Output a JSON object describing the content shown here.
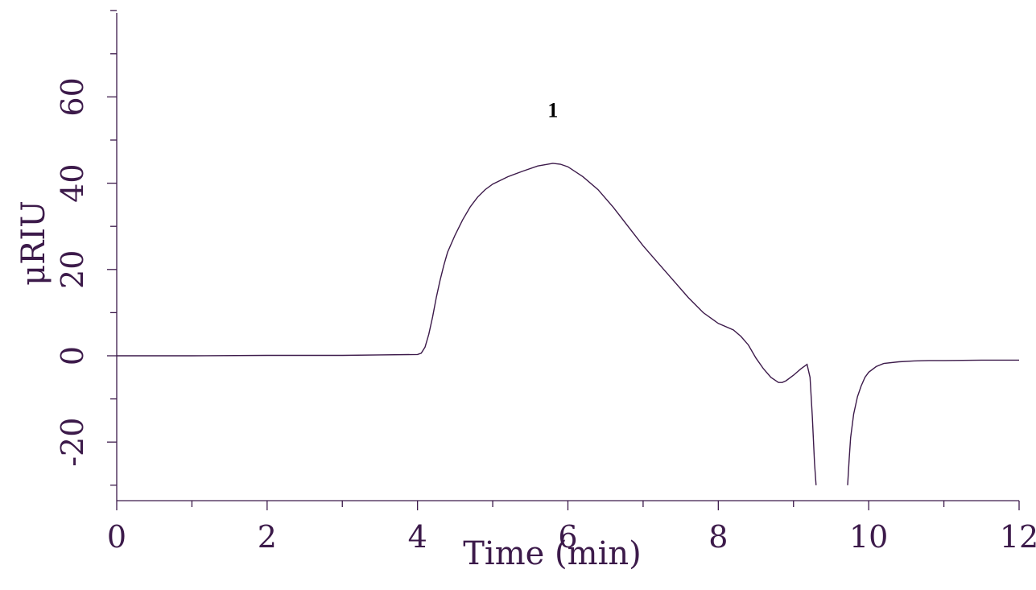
{
  "chart_data": {
    "type": "line",
    "title": "",
    "xlabel": "Time (min)",
    "ylabel": "μRIU",
    "xlim": [
      0,
      12
    ],
    "ylim": [
      -33,
      80
    ],
    "x_ticks": [
      0,
      2,
      4,
      6,
      8,
      10,
      12
    ],
    "y_ticks": [
      -20,
      0,
      20,
      40,
      60
    ],
    "x_minor_step": 1,
    "y_minor_step": 10,
    "grid": false,
    "color": "#3c1a4a",
    "annotations": [
      {
        "text": "1",
        "x": 5.8,
        "y": 57
      }
    ],
    "series": [
      {
        "x": [
          0,
          1,
          2,
          3,
          3.5,
          4.0,
          4.05,
          4.1,
          4.15,
          4.2,
          4.25,
          4.3,
          4.35,
          4.4,
          4.5,
          4.6,
          4.7,
          4.8,
          4.9,
          5.0,
          5.2,
          5.4,
          5.6,
          5.8,
          5.9,
          6.0,
          6.2,
          6.4,
          6.6,
          6.8,
          7.0,
          7.2,
          7.4,
          7.6,
          7.8,
          8.0,
          8.2,
          8.3,
          8.4,
          8.5,
          8.6,
          8.7,
          8.8,
          8.85,
          8.9,
          9.0,
          9.1,
          9.18,
          9.22,
          9.25,
          9.28,
          9.3
        ],
        "y": [
          0.0,
          0.0,
          0.1,
          0.1,
          0.2,
          0.3,
          0.6,
          2.0,
          5.0,
          9.0,
          13.5,
          17.5,
          21.0,
          24.0,
          28.0,
          31.5,
          34.5,
          36.8,
          38.5,
          39.8,
          41.5,
          42.8,
          44.0,
          44.6,
          44.4,
          43.8,
          41.5,
          38.5,
          34.5,
          30.0,
          25.5,
          21.5,
          17.5,
          13.5,
          10.0,
          7.5,
          6.0,
          4.5,
          2.5,
          -0.5,
          -3.0,
          -5.0,
          -6.2,
          -6.2,
          -5.8,
          -4.5,
          -3.0,
          -2.0,
          -5.0,
          -14.0,
          -25.0,
          -30.0
        ]
      },
      {
        "x": [
          9.72,
          9.74,
          9.76,
          9.8,
          9.85,
          9.9,
          9.95,
          10.0,
          10.1,
          10.2,
          10.4,
          10.6,
          10.8,
          11.0,
          11.5,
          12.0
        ],
        "y": [
          -30.0,
          -24.0,
          -19.0,
          -13.5,
          -9.5,
          -7.0,
          -5.0,
          -3.8,
          -2.5,
          -1.8,
          -1.4,
          -1.2,
          -1.1,
          -1.1,
          -1.0,
          -1.0
        ]
      }
    ]
  }
}
